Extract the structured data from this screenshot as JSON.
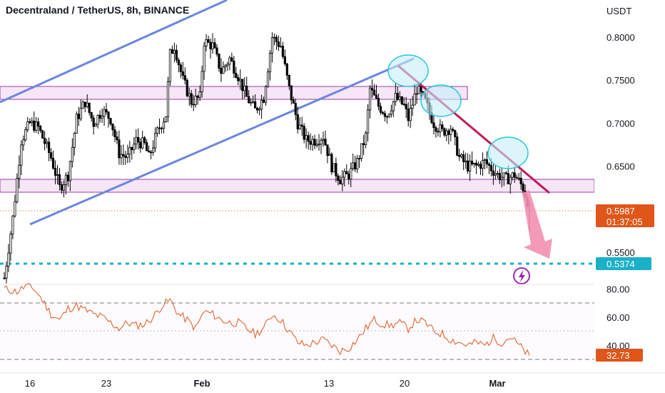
{
  "header": {
    "title": "Decentraland / TetherUS, 8h, BINANCE"
  },
  "price_axis": {
    "unit": "USDT",
    "ticks": [
      "0.8000",
      "0.7500",
      "0.7000",
      "0.6500",
      "0.5500"
    ]
  },
  "rsi_axis": {
    "ticks": [
      "80.00",
      "60.00",
      "40.00"
    ]
  },
  "time_axis": {
    "ticks": [
      "16",
      "23",
      "Feb",
      "13",
      "20",
      "Mar"
    ]
  },
  "tags": {
    "last_price": "0.5987",
    "countdown": "01:37:05",
    "target_level": "0.5374",
    "rsi_value": "32.73"
  },
  "colors": {
    "up_candle": "#ffffff",
    "down_candle": "#000000",
    "channel_line": "#6b86e0",
    "trend_line": "#c2185b",
    "zone_fill": "#f6e6f6",
    "zone_border": "#9b3aa8",
    "circle_fill": "#c4eef8",
    "circle_border": "#26c6da",
    "arrow": "#f28fb1",
    "price_tag": "#e0561a",
    "target_line": "#1ab0c8",
    "rsi_line": "#e0561a",
    "lightning": "#9c27b0"
  },
  "chart_data": {
    "type": "candlestick",
    "title": "Decentraland / TetherUS, 8h, BINANCE",
    "y_unit": "USDT",
    "ylim": [
      0.515,
      0.825
    ],
    "y_ticks": [
      0.8,
      0.75,
      0.7,
      0.65,
      0.55
    ],
    "x_ticks": [
      "16",
      "23",
      "Feb",
      "13",
      "20",
      "Mar"
    ],
    "close_path": [
      [
        0,
        0.52
      ],
      [
        4,
        0.59
      ],
      [
        8,
        0.68
      ],
      [
        12,
        0.7
      ],
      [
        16,
        0.695
      ],
      [
        22,
        0.66
      ],
      [
        26,
        0.625
      ],
      [
        30,
        0.64
      ],
      [
        34,
        0.705
      ],
      [
        38,
        0.725
      ],
      [
        42,
        0.7
      ],
      [
        46,
        0.715
      ],
      [
        50,
        0.705
      ],
      [
        54,
        0.665
      ],
      [
        58,
        0.66
      ],
      [
        62,
        0.68
      ],
      [
        66,
        0.675
      ],
      [
        68,
        0.66
      ],
      [
        72,
        0.69
      ],
      [
        76,
        0.71
      ],
      [
        78,
        0.78
      ],
      [
        80,
        0.79
      ],
      [
        84,
        0.75
      ],
      [
        88,
        0.725
      ],
      [
        92,
        0.73
      ],
      [
        94,
        0.795
      ],
      [
        98,
        0.79
      ],
      [
        102,
        0.76
      ],
      [
        106,
        0.775
      ],
      [
        110,
        0.755
      ],
      [
        114,
        0.73
      ],
      [
        118,
        0.715
      ],
      [
        122,
        0.73
      ],
      [
        126,
        0.8
      ],
      [
        130,
        0.79
      ],
      [
        134,
        0.74
      ],
      [
        138,
        0.7
      ],
      [
        142,
        0.68
      ],
      [
        146,
        0.68
      ],
      [
        150,
        0.685
      ],
      [
        154,
        0.65
      ],
      [
        158,
        0.635
      ],
      [
        162,
        0.64
      ],
      [
        166,
        0.655
      ],
      [
        170,
        0.685
      ],
      [
        172,
        0.74
      ],
      [
        176,
        0.72
      ],
      [
        180,
        0.71
      ],
      [
        184,
        0.73
      ],
      [
        188,
        0.72
      ],
      [
        190,
        0.705
      ],
      [
        194,
        0.74
      ],
      [
        198,
        0.725
      ],
      [
        202,
        0.7
      ],
      [
        206,
        0.69
      ],
      [
        210,
        0.695
      ],
      [
        214,
        0.66
      ],
      [
        218,
        0.65
      ],
      [
        222,
        0.65
      ],
      [
        226,
        0.655
      ],
      [
        228,
        0.65
      ],
      [
        232,
        0.64
      ],
      [
        236,
        0.635
      ],
      [
        240,
        0.64
      ],
      [
        244,
        0.625
      ],
      [
        246,
        0.61
      ],
      [
        247,
        0.599
      ]
    ],
    "ohlc_note": "candles generated from close_path",
    "last_price": 0.5987,
    "countdown": "01:37:05",
    "target_level": 0.5374,
    "support_zone": [
      0.62,
      0.635
    ],
    "resistance_zone": [
      0.728,
      0.743
    ],
    "rsi": {
      "ylim": [
        22,
        86
      ],
      "levels": [
        70,
        50,
        30
      ],
      "ticks": [
        80,
        60,
        40
      ],
      "last": 32.73,
      "path": [
        [
          0,
          80
        ],
        [
          6,
          78
        ],
        [
          10,
          82
        ],
        [
          14,
          80
        ],
        [
          18,
          72
        ],
        [
          22,
          62
        ],
        [
          26,
          58
        ],
        [
          30,
          66
        ],
        [
          34,
          68
        ],
        [
          38,
          65
        ],
        [
          42,
          62
        ],
        [
          46,
          60
        ],
        [
          50,
          56
        ],
        [
          54,
          52
        ],
        [
          58,
          56
        ],
        [
          62,
          54
        ],
        [
          66,
          55
        ],
        [
          70,
          60
        ],
        [
          74,
          68
        ],
        [
          78,
          72
        ],
        [
          82,
          62
        ],
        [
          86,
          58
        ],
        [
          90,
          52
        ],
        [
          94,
          64
        ],
        [
          98,
          62
        ],
        [
          102,
          58
        ],
        [
          106,
          56
        ],
        [
          110,
          56
        ],
        [
          114,
          52
        ],
        [
          118,
          48
        ],
        [
          122,
          52
        ],
        [
          126,
          62
        ],
        [
          130,
          58
        ],
        [
          134,
          50
        ],
        [
          138,
          42
        ],
        [
          142,
          40
        ],
        [
          146,
          42
        ],
        [
          150,
          44
        ],
        [
          154,
          40
        ],
        [
          158,
          36
        ],
        [
          162,
          38
        ],
        [
          166,
          44
        ],
        [
          170,
          52
        ],
        [
          174,
          58
        ],
        [
          178,
          55
        ],
        [
          182,
          54
        ],
        [
          186,
          56
        ],
        [
          190,
          52
        ],
        [
          194,
          58
        ],
        [
          198,
          56
        ],
        [
          202,
          50
        ],
        [
          206,
          48
        ],
        [
          210,
          44
        ],
        [
          214,
          42
        ],
        [
          218,
          40
        ],
        [
          222,
          42
        ],
        [
          226,
          40
        ],
        [
          230,
          45
        ],
        [
          234,
          42
        ],
        [
          238,
          46
        ],
        [
          242,
          40
        ],
        [
          246,
          34
        ],
        [
          247,
          32.7
        ]
      ]
    }
  }
}
